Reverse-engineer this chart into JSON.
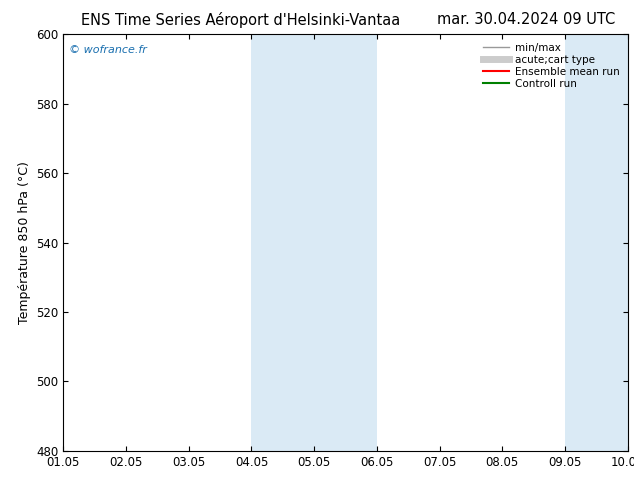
{
  "title_left": "ENS Time Series Aéroport d'Helsinki-Vantaa",
  "title_right": "mar. 30.04.2024 09 UTC",
  "ylabel": "Température 850 hPa (°C)",
  "ylim": [
    480,
    600
  ],
  "yticks": [
    480,
    500,
    520,
    540,
    560,
    580,
    600
  ],
  "xlim": [
    0.0,
    9.0
  ],
  "xtick_labels": [
    "01.05",
    "02.05",
    "03.05",
    "04.05",
    "05.05",
    "06.05",
    "07.05",
    "08.05",
    "09.05",
    "10.05"
  ],
  "xtick_positions": [
    0.0,
    1.0,
    2.0,
    3.0,
    4.0,
    5.0,
    6.0,
    7.0,
    8.0,
    9.0
  ],
  "shaded_bands": [
    {
      "xmin": 3.0,
      "xmax": 4.0,
      "color": "#daeaf5"
    },
    {
      "xmin": 4.0,
      "xmax": 5.0,
      "color": "#daeaf5"
    },
    {
      "xmin": 8.0,
      "xmax": 8.5,
      "color": "#daeaf5"
    },
    {
      "xmin": 8.5,
      "xmax": 9.0,
      "color": "#daeaf5"
    }
  ],
  "watermark": "© wofrance.fr",
  "watermark_color": "#1a6faf",
  "background_color": "#ffffff",
  "plot_bg_color": "#ffffff",
  "legend_entries": [
    {
      "label": "min/max",
      "color": "#999999",
      "lw": 1.0,
      "style": "-"
    },
    {
      "label": "acute;cart type",
      "color": "#cccccc",
      "lw": 5,
      "style": "-"
    },
    {
      "label": "Ensemble mean run",
      "color": "#ff0000",
      "lw": 1.5,
      "style": "-"
    },
    {
      "label": "Controll run",
      "color": "#008000",
      "lw": 1.5,
      "style": "-"
    }
  ],
  "title_fontsize": 10.5,
  "tick_fontsize": 8.5,
  "ylabel_fontsize": 9,
  "legend_fontsize": 7.5,
  "watermark_fontsize": 8
}
